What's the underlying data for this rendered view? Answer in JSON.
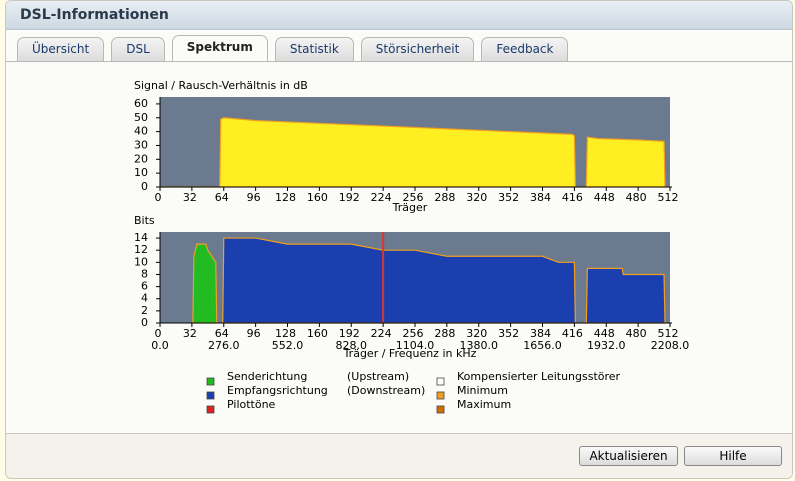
{
  "header": {
    "title": "DSL-Informationen"
  },
  "tabs": [
    "Übersicht",
    "DSL",
    "Spektrum",
    "Statistik",
    "Störsicherheit",
    "Feedback"
  ],
  "active_tab": 2,
  "chart_data": [
    {
      "type": "area",
      "title": "Signal / Rausch-Verhältnis in dB",
      "xlabel": "Träger",
      "xlim": [
        0,
        512
      ],
      "xticks": [
        0,
        32,
        64,
        96,
        128,
        160,
        192,
        224,
        256,
        288,
        320,
        352,
        384,
        416,
        448,
        480,
        512
      ],
      "ylim": [
        0,
        65
      ],
      "yticks": [
        0,
        10,
        20,
        30,
        40,
        50,
        60
      ],
      "background": "#6b7a8f",
      "series": [
        {
          "type": "area",
          "color": "#ffee22",
          "line_color": "#f0a020",
          "x": [
            0,
            60,
            61,
            64,
            80,
            96,
            128,
            160,
            192,
            224,
            256,
            288,
            320,
            352,
            384,
            414,
            416,
            417,
            428,
            429,
            440,
            480,
            506,
            507,
            512
          ],
          "values": [
            0,
            0,
            49,
            50,
            49,
            48,
            47,
            46,
            45,
            44,
            43,
            42,
            41,
            40,
            39,
            38,
            37,
            0,
            0,
            36,
            35,
            34,
            33,
            0,
            0
          ]
        }
      ]
    },
    {
      "type": "area",
      "title": "Bits",
      "xlabel": "Träger / Frequenz in kHz",
      "xlim": [
        0,
        512
      ],
      "xticks": [
        0,
        32,
        64,
        96,
        128,
        160,
        192,
        224,
        256,
        288,
        320,
        352,
        384,
        416,
        448,
        480,
        512
      ],
      "x2lim": [
        0,
        2208
      ],
      "x2ticks": [
        {
          "value": 0,
          "label": "0.0"
        },
        {
          "value": 276,
          "label": "276.0"
        },
        {
          "value": 552,
          "label": "552.0"
        },
        {
          "value": 828,
          "label": "828.0"
        },
        {
          "value": 1104,
          "label": "1104.0"
        },
        {
          "value": 1380,
          "label": "1380.0"
        },
        {
          "value": 1656,
          "label": "1656.0"
        },
        {
          "value": 1932,
          "label": "1932.0"
        },
        {
          "value": 2208,
          "label": "2208.0"
        }
      ],
      "ylim": [
        0,
        15
      ],
      "yticks": [
        0,
        2,
        4,
        6,
        8,
        10,
        12,
        14
      ],
      "background": "#6b7a8f",
      "series": [
        {
          "type": "area",
          "color": "#22bb22",
          "line_color": "#f0a020",
          "x": [
            33,
            34,
            37,
            46,
            48,
            52,
            56,
            57
          ],
          "values": [
            0,
            11,
            13,
            13,
            12,
            11,
            10,
            0
          ]
        },
        {
          "type": "area",
          "color": "#1c3fb0",
          "line_color": "#f0a020",
          "x": [
            63,
            64,
            70,
            96,
            128,
            160,
            192,
            224,
            256,
            288,
            320,
            352,
            384,
            400,
            416,
            417,
            428,
            429,
            464,
            465,
            506,
            507
          ],
          "values": [
            0,
            14,
            14,
            14,
            13,
            13,
            13,
            12,
            12,
            11,
            11,
            11,
            11,
            10,
            10,
            0,
            0,
            9,
            9,
            8,
            8,
            0
          ]
        },
        {
          "type": "line",
          "color": "#dd3333",
          "x": [
            224
          ],
          "values": [
            15
          ]
        }
      ]
    }
  ],
  "legend": [
    {
      "label": "Senderichtung",
      "direction": "(Upstream)",
      "color": "#22bb22"
    },
    {
      "label": "Empfangsrichtung",
      "direction": "(Downstream)",
      "color": "#1c3fb0"
    },
    {
      "label": "Pilottöne",
      "color": "#dd2222"
    },
    {
      "label": "Kompensierter Leitungsstörer",
      "color": "#ffffff"
    },
    {
      "label": "Minimum",
      "color": "#f0a020"
    },
    {
      "label": "Maximum",
      "color": "#d07000"
    }
  ],
  "buttons": [
    "Aktualisieren",
    "Hilfe"
  ]
}
